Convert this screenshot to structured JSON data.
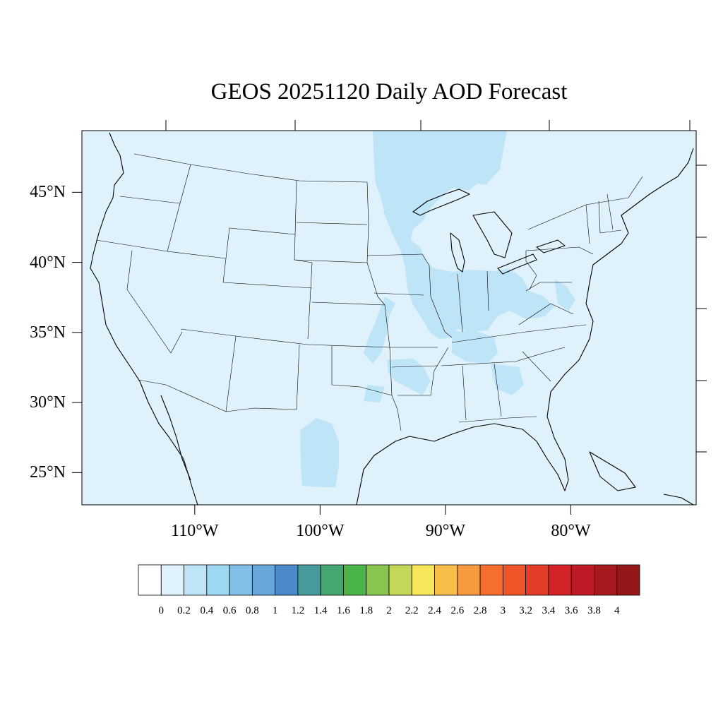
{
  "title": "GEOS 20251120 Daily AOD Forecast",
  "lat_labels": [
    "45°N",
    "40°N",
    "35°N",
    "30°N",
    "25°N"
  ],
  "lat_values": [
    45,
    40,
    35,
    30,
    25
  ],
  "lon_labels": [
    "110°W",
    "100°W",
    "90°W",
    "80°W"
  ],
  "lon_values": [
    -110,
    -100,
    -90,
    -80
  ],
  "map_extent": {
    "lon_min": -119,
    "lon_max": -70,
    "lat_min": 22.7,
    "lat_max": 49.4
  },
  "colorbar": {
    "labels": [
      "0",
      "0.2",
      "0.4",
      "0.6",
      "0.8",
      "1",
      "1.2",
      "1.4",
      "1.6",
      "1.8",
      "2",
      "2.2",
      "2.4",
      "2.6",
      "2.8",
      "3",
      "3.2",
      "3.4",
      "3.6",
      "3.8",
      "4"
    ],
    "colors": [
      "#ffffff",
      "#dff2fb",
      "#bee5f7",
      "#9fd8f3",
      "#82bfe6",
      "#66a6da",
      "#4a8ac8",
      "#489b9d",
      "#46a671",
      "#4bb447",
      "#87c54f",
      "#c5d759",
      "#f7e75b",
      "#f7bf4a",
      "#f59a3e",
      "#f56e2d",
      "#ee5529",
      "#e33d27",
      "#d42229",
      "#be1a25",
      "#a61a1f",
      "#931719"
    ]
  },
  "colors": {
    "background_aod": "#dff2fb",
    "elevated_aod": "#bee5f7",
    "border": "#000000"
  }
}
